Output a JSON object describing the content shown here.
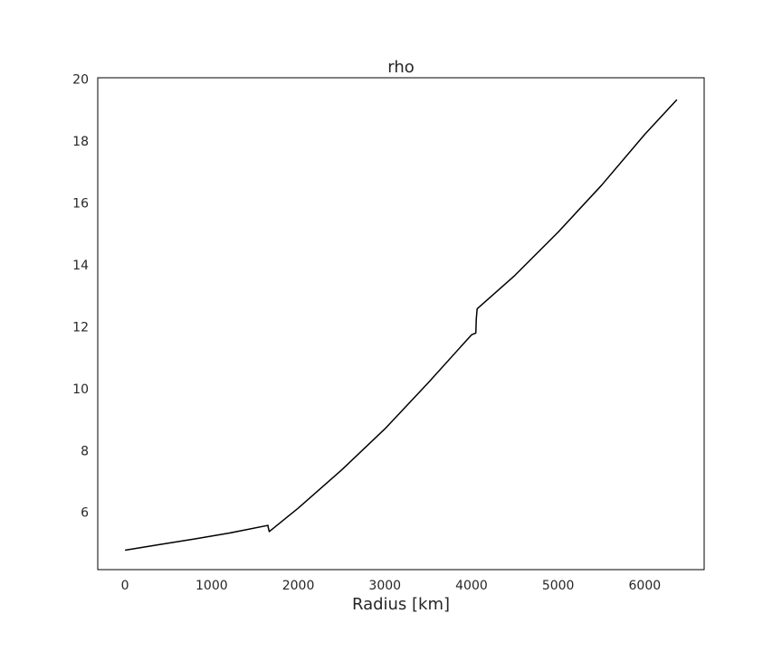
{
  "chart_data": {
    "type": "line",
    "title": "rho",
    "xlabel": "Radius [km]",
    "ylabel": "",
    "xlim": [
      -315,
      6686
    ],
    "ylim": [
      4.15,
      20.05
    ],
    "grid": false,
    "legend": "none",
    "x_ticks": [
      0,
      1000,
      2000,
      3000,
      4000,
      5000,
      6000
    ],
    "y_ticks": [
      6,
      8,
      10,
      12,
      14,
      16,
      18,
      20
    ],
    "colors": {
      "line": "#000000",
      "frame": "#000000",
      "text": "#262626",
      "background": "#ffffff"
    },
    "series": [
      {
        "x": [
          0,
          400,
          800,
          1200,
          1650,
          1652,
          1665,
          2000,
          2500,
          3000,
          3500,
          4000,
          4050,
          4055,
          4065,
          4500,
          5000,
          5500,
          6000,
          6371
        ],
        "y": [
          4.78,
          4.96,
          5.14,
          5.33,
          5.58,
          5.53,
          5.38,
          6.14,
          7.37,
          8.7,
          10.19,
          11.74,
          11.8,
          12.24,
          12.58,
          13.66,
          15.06,
          16.57,
          18.22,
          19.34
        ]
      }
    ]
  }
}
